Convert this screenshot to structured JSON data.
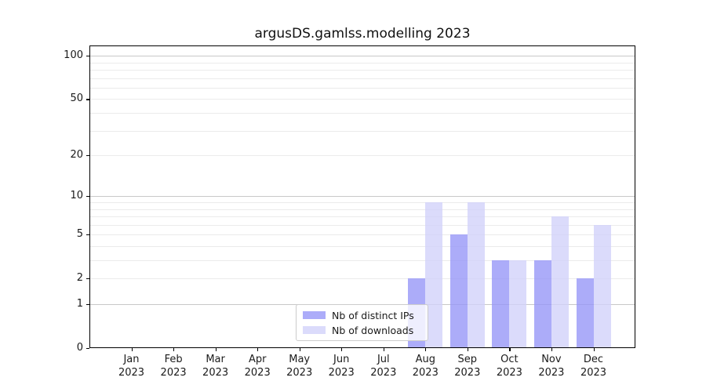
{
  "title": "argusDS.gamlss.modelling 2023",
  "legend": {
    "items": [
      {
        "label": "Nb of distinct IPs"
      },
      {
        "label": "Nb of downloads"
      }
    ]
  },
  "chart_data": {
    "type": "bar",
    "title": "argusDS.gamlss.modelling 2023",
    "categories": [
      "Jan 2023",
      "Feb 2023",
      "Mar 2023",
      "Apr 2023",
      "May 2023",
      "Jun 2023",
      "Jul 2023",
      "Aug 2023",
      "Sep 2023",
      "Oct 2023",
      "Nov 2023",
      "Dec 2023"
    ],
    "series": [
      {
        "name": "Nb of distinct IPs",
        "color": "rgba(151,151,247,0.8)",
        "values": [
          0,
          0,
          0,
          0,
          0,
          0,
          0,
          2,
          5,
          3,
          3,
          2
        ]
      },
      {
        "name": "Nb of downloads",
        "color": "rgba(210,210,250,0.8)",
        "values": [
          0,
          0,
          0,
          0,
          0,
          0,
          0,
          9,
          9,
          3,
          7,
          6
        ]
      }
    ],
    "yscale": "log1p",
    "yticks": [
      0,
      1,
      2,
      5,
      10,
      20,
      50,
      100
    ],
    "minor_gridlines": [
      2,
      3,
      4,
      5,
      6,
      7,
      8,
      9,
      20,
      30,
      40,
      50,
      60,
      70,
      80,
      90
    ],
    "major_gridlines": [
      1,
      10,
      100
    ],
    "ylim": [
      0,
      118
    ],
    "grid": "horizontal",
    "legend_position": "bottom-center",
    "colors": {
      "major_grid": "#c8c8c8",
      "minor_grid": "#ebebeb",
      "axis": "#000000"
    }
  }
}
